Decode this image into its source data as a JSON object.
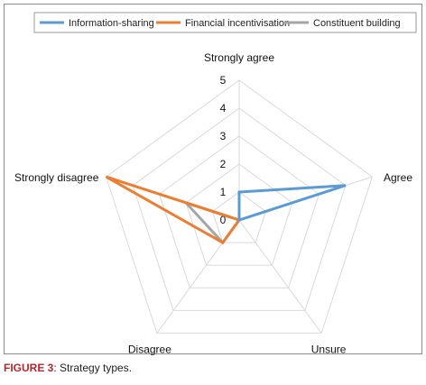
{
  "chart_data": {
    "type": "radar",
    "title": "",
    "axes": [
      "Strongly agree",
      "Agree",
      "Unsure",
      "Disagree",
      "Strongly disagree"
    ],
    "rlim": [
      0,
      5
    ],
    "ticks": [
      "0",
      "1",
      "2",
      "3",
      "4",
      "5"
    ],
    "grid": true,
    "legend_position": "top",
    "series": [
      {
        "name": "Information-sharing",
        "color": "#5b9bd5",
        "values": [
          1,
          4,
          0,
          0,
          0
        ]
      },
      {
        "name": "Financial incentivisation",
        "color": "#ed7d31",
        "values": [
          0,
          0,
          0,
          1,
          5
        ]
      },
      {
        "name": "Constituent building",
        "color": "#a5a5a5",
        "values": [
          0,
          0,
          0,
          1,
          2
        ]
      }
    ]
  },
  "caption": {
    "label": "FIGURE 3",
    "text": ": Strategy types."
  }
}
